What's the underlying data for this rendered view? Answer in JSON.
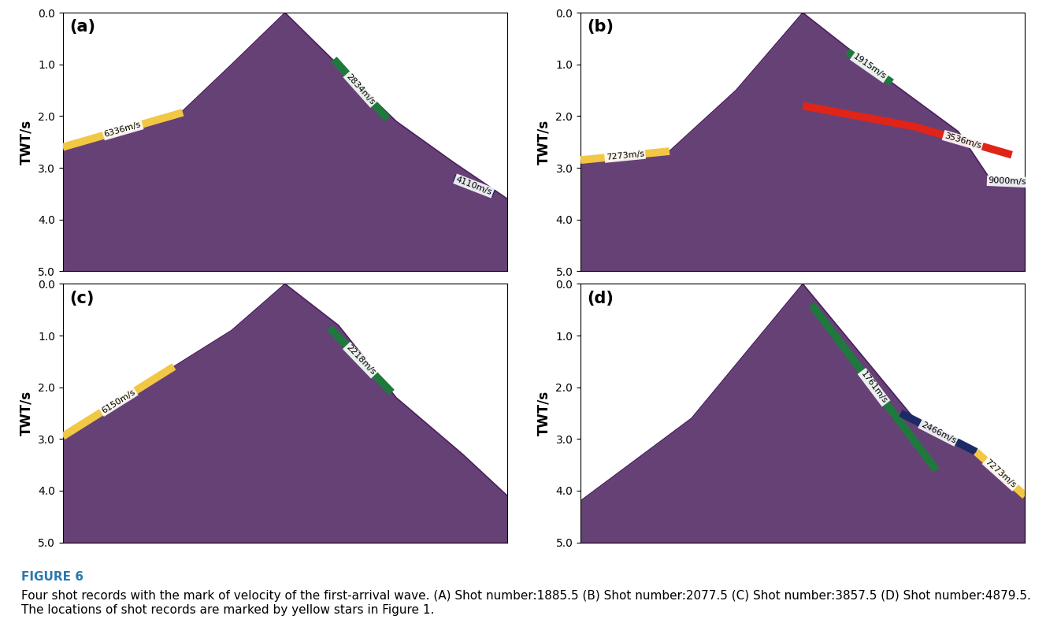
{
  "figure": {
    "caption_title": "FIGURE 6",
    "caption": "Four shot records with the mark of velocity of the first-arrival wave. (A) Shot number:1885.5 (B) Shot number:2077.5 (C) Shot number:3857.5 (D) Shot number:4879.5. The locations of shot records are marked by yellow stars in Figure 1."
  },
  "chart_data": [
    {
      "type": "line",
      "label": "(a)",
      "ylabel": "TWT/s",
      "ylim": [
        5,
        0
      ],
      "xlim": [
        0,
        1
      ],
      "xticks": [],
      "tick_labels": "y",
      "yticks": [
        {
          "value": 0,
          "label": "0.0"
        },
        {
          "value": 1,
          "label": "1.0"
        },
        {
          "value": 2,
          "label": "2.0"
        },
        {
          "value": 3,
          "label": "3.0"
        },
        {
          "value": 4,
          "label": "4.0"
        },
        {
          "value": 5,
          "label": "5.0"
        }
      ],
      "series": [
        {
          "type": "area",
          "color": "#4b1f5e",
          "x": [
            0,
            0.27,
            0.38,
            0.5,
            0.63,
            0.75,
            0.88,
            1.0
          ],
          "values": [
            2.6,
            1.9,
            1.0,
            0,
            1.1,
            2.1,
            2.9,
            3.6
          ]
        },
        {
          "type": "line",
          "name": "6336m/s",
          "color": "#f2c744",
          "x": [
            0,
            0.27
          ],
          "values": [
            2.6,
            1.93
          ]
        },
        {
          "type": "line",
          "name": "2834m/s",
          "color": "#1e7a3c",
          "x": [
            0.61,
            0.73
          ],
          "values": [
            0.9,
            2.05
          ]
        },
        {
          "type": "line",
          "name": "4110m/s",
          "color": "#1c2a66",
          "x": [
            0.88,
            0.97
          ],
          "values": [
            3.2,
            3.5
          ]
        }
      ]
    },
    {
      "type": "line",
      "label": "(b)",
      "ylabel": "TWT/s",
      "ylim": [
        5,
        0
      ],
      "xlim": [
        0,
        1
      ],
      "xticks": [],
      "tick_labels": "y",
      "yticks": [
        {
          "value": 0,
          "label": "0.0"
        },
        {
          "value": 1,
          "label": "1.0"
        },
        {
          "value": 2,
          "label": "2.0"
        },
        {
          "value": 3,
          "label": "3.0"
        },
        {
          "value": 4,
          "label": "4.0"
        },
        {
          "value": 5,
          "label": "5.0"
        }
      ],
      "series": [
        {
          "type": "area",
          "color": "#4b1f5e",
          "x": [
            0,
            0.2,
            0.35,
            0.5,
            0.7,
            0.85,
            0.92,
            1.0
          ],
          "values": [
            2.85,
            2.68,
            1.5,
            0,
            1.35,
            2.3,
            3.2,
            3.3
          ]
        },
        {
          "type": "line",
          "name": "7273m/s",
          "color": "#f2c744",
          "x": [
            0,
            0.2
          ],
          "values": [
            2.85,
            2.68
          ]
        },
        {
          "type": "line",
          "name": "1915m/s",
          "color": "#1e7a3c",
          "x": [
            0.6,
            0.7
          ],
          "values": [
            0.75,
            1.35
          ]
        },
        {
          "type": "line",
          "name": "3536m/s",
          "color": "#e02418",
          "x": [
            0.5,
            0.75,
            0.97
          ],
          "values": [
            1.8,
            2.2,
            2.75
          ]
        },
        {
          "type": "line",
          "name": "9000m/s",
          "color": "#1c2a66",
          "x": [
            0.92,
            1.0
          ],
          "values": [
            3.25,
            3.28
          ]
        }
      ]
    },
    {
      "type": "line",
      "label": "(c)",
      "ylabel": "TWT/s",
      "ylim": [
        5,
        0
      ],
      "xlim": [
        0,
        1
      ],
      "xticks": [],
      "tick_labels": "y",
      "yticks": [
        {
          "value": 0,
          "label": "0.0"
        },
        {
          "value": 1,
          "label": "1.0"
        },
        {
          "value": 2,
          "label": "2.0"
        },
        {
          "value": 3,
          "label": "3.0"
        },
        {
          "value": 4,
          "label": "4.0"
        },
        {
          "value": 5,
          "label": "5.0"
        }
      ],
      "series": [
        {
          "type": "area",
          "color": "#4b1f5e",
          "x": [
            0,
            0.25,
            0.38,
            0.5,
            0.62,
            0.75,
            0.9,
            1.0
          ],
          "values": [
            3.0,
            1.6,
            0.9,
            0,
            0.8,
            2.2,
            3.3,
            4.1
          ]
        },
        {
          "type": "line",
          "name": "6150m/s",
          "color": "#f2c744",
          "x": [
            0,
            0.25
          ],
          "values": [
            2.95,
            1.6
          ]
        },
        {
          "type": "line",
          "name": "2218m/s",
          "color": "#1e7a3c",
          "x": [
            0.6,
            0.74
          ],
          "values": [
            0.85,
            2.1
          ]
        }
      ]
    },
    {
      "type": "line",
      "label": "(d)",
      "ylabel": "TWT/s",
      "ylim": [
        5,
        0
      ],
      "xlim": [
        0,
        1
      ],
      "xticks": [],
      "tick_labels": "y",
      "yticks": [
        {
          "value": 0,
          "label": "0.0"
        },
        {
          "value": 1,
          "label": "1.0"
        },
        {
          "value": 2,
          "label": "2.0"
        },
        {
          "value": 3,
          "label": "3.0"
        },
        {
          "value": 4,
          "label": "4.0"
        },
        {
          "value": 5,
          "label": "5.0"
        }
      ],
      "series": [
        {
          "type": "area",
          "color": "#4b1f5e",
          "x": [
            0,
            0.25,
            0.5,
            0.75,
            0.9,
            1.0
          ],
          "values": [
            4.2,
            2.6,
            0,
            2.6,
            3.3,
            4.1
          ]
        },
        {
          "type": "line",
          "name": "1761m/s",
          "color": "#1e7a3c",
          "x": [
            0.52,
            0.8
          ],
          "values": [
            0.4,
            3.6
          ]
        },
        {
          "type": "line",
          "name": "2466m/s",
          "color": "#1c2a66",
          "x": [
            0.72,
            0.89
          ],
          "values": [
            2.5,
            3.25
          ]
        },
        {
          "type": "line",
          "name": "7273m/s",
          "color": "#f2c744",
          "x": [
            0.89,
            1.0
          ],
          "values": [
            3.25,
            4.1
          ]
        }
      ]
    }
  ]
}
